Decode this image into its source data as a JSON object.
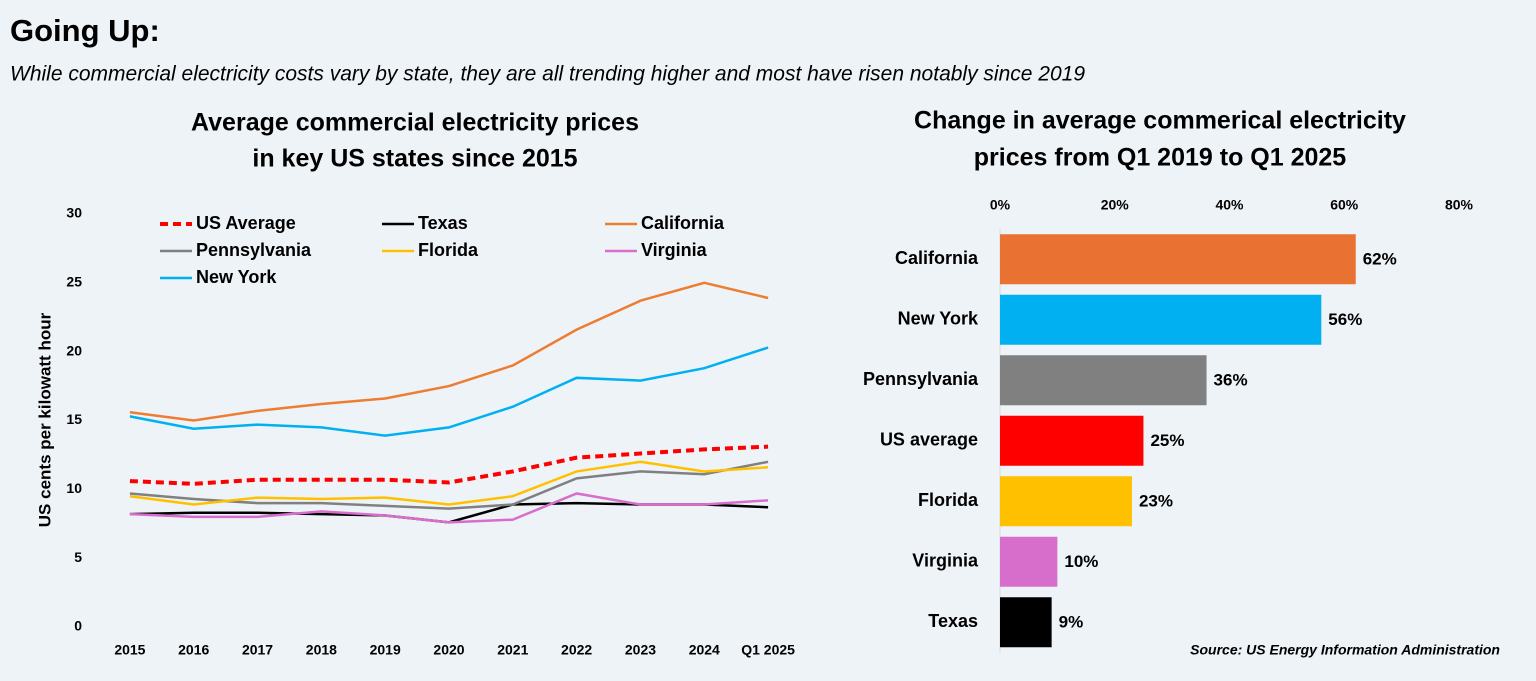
{
  "title": "Going Up:",
  "subtitle": "While commercial electricity costs vary by state, they are all trending higher and most have risen notably since 2019",
  "source": "Source: US Energy Information Administration",
  "chart_data": [
    {
      "type": "line",
      "title": [
        "Average commercial electricity prices",
        "in key US states since 2015"
      ],
      "ylabel": "US cents per kilowatt hour",
      "categories": [
        "2015",
        "2016",
        "2017",
        "2018",
        "2019",
        "2020",
        "2021",
        "2022",
        "2023",
        "2024",
        "Q1 2025"
      ],
      "ylim": [
        0,
        30
      ],
      "yticks": [
        0,
        5,
        10,
        15,
        20,
        25,
        30
      ],
      "grid": false,
      "series": [
        {
          "name": "US Average",
          "color": "#ff0000",
          "dashed": true,
          "values": [
            10.6,
            10.4,
            10.7,
            10.7,
            10.7,
            10.5,
            11.3,
            12.3,
            12.6,
            12.9,
            13.1
          ]
        },
        {
          "name": "Texas",
          "color": "#000000",
          "values": [
            8.2,
            8.3,
            8.3,
            8.2,
            8.1,
            7.6,
            8.9,
            9.0,
            8.9,
            8.9,
            8.7
          ]
        },
        {
          "name": "California",
          "color": "#ed7d31",
          "values": [
            15.6,
            15.0,
            15.7,
            16.2,
            16.6,
            17.5,
            19.0,
            21.6,
            23.7,
            25.0,
            23.9
          ]
        },
        {
          "name": "Pennsylvania",
          "color": "#808080",
          "values": [
            9.7,
            9.3,
            9.0,
            9.0,
            8.8,
            8.6,
            8.9,
            10.8,
            11.3,
            11.1,
            12.0
          ]
        },
        {
          "name": "Florida",
          "color": "#ffc000",
          "values": [
            9.5,
            8.9,
            9.4,
            9.3,
            9.4,
            8.9,
            9.5,
            11.3,
            12.0,
            11.3,
            11.6
          ]
        },
        {
          "name": "Virginia",
          "color": "#d86ecc",
          "values": [
            8.2,
            8.0,
            8.0,
            8.4,
            8.1,
            7.6,
            7.8,
            9.7,
            8.9,
            8.9,
            9.2
          ]
        },
        {
          "name": "New York",
          "color": "#00b0f0",
          "values": [
            15.3,
            14.4,
            14.7,
            14.5,
            13.9,
            14.5,
            16.0,
            18.1,
            17.9,
            18.8,
            20.3
          ]
        }
      ]
    },
    {
      "type": "hbar",
      "title": [
        "Change in average commerical electricity",
        "prices from Q1 2019 to Q1 2025"
      ],
      "categories": [
        "California",
        "New York",
        "Pennsylvania",
        "US average",
        "Florida",
        "Virginia",
        "Texas"
      ],
      "values": [
        62,
        56,
        36,
        25,
        23,
        10,
        9
      ],
      "value_labels": [
        "62%",
        "56%",
        "36%",
        "25%",
        "23%",
        "10%",
        "9%"
      ],
      "colors": [
        "#e97132",
        "#00b0f0",
        "#808080",
        "#ff0000",
        "#ffc000",
        "#d86ecc",
        "#000000"
      ],
      "xlim": [
        0,
        80
      ],
      "xticks": [
        {
          "value": 0,
          "label": "0%"
        },
        {
          "value": 20,
          "label": "20%"
        },
        {
          "value": 40,
          "label": "40%"
        },
        {
          "value": 60,
          "label": "60%"
        },
        {
          "value": 80,
          "label": "80%"
        }
      ]
    }
  ]
}
